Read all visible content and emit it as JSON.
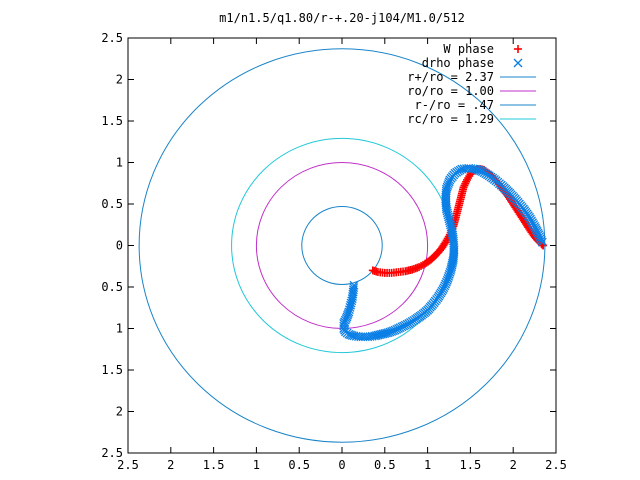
{
  "chart_data": {
    "type": "scatter",
    "title": "m1/n1.5/q1.80/r-+.20-j104/M1.0/512",
    "xlim": [
      -2.5,
      2.5
    ],
    "ylim": [
      -2.5,
      2.5
    ],
    "x_ticks": [
      -2.5,
      -2,
      -1.5,
      -1,
      -0.5,
      0,
      0.5,
      1,
      1.5,
      2,
      2.5
    ],
    "y_ticks": [
      -2.5,
      -2,
      -1.5,
      -1,
      -0.5,
      0,
      0.5,
      1,
      1.5,
      2,
      2.5
    ],
    "x_tick_labels": [
      "2.5",
      "2",
      "1.5",
      "1",
      "0.5",
      "0",
      "0.5",
      "1",
      "1.5",
      "2",
      "2.5"
    ],
    "y_tick_labels": [
      "2.5",
      "2",
      "1.5",
      "1",
      "0.5",
      "0",
      "0.5",
      "1",
      "1.5",
      "2",
      "2.5"
    ],
    "grid": false,
    "legend_position": "top-right",
    "series": [
      {
        "name": "W phase",
        "kind": "points",
        "marker": "+",
        "color": "#ff0000",
        "x": [
          0.36,
          0.42,
          0.5,
          0.58,
          0.66,
          0.74,
          0.82,
          0.9,
          0.97,
          1.04,
          1.1,
          1.16,
          1.21,
          1.26,
          1.3,
          1.33,
          1.36,
          1.39,
          1.42,
          1.46,
          1.5,
          1.54,
          1.58,
          1.62,
          1.66,
          1.7,
          1.75,
          1.8,
          1.85,
          1.9,
          1.95,
          2.0,
          2.05,
          2.1,
          2.15,
          2.2,
          2.24,
          2.28,
          2.31,
          2.33,
          2.34,
          2.35
        ],
        "y": [
          -0.3,
          -0.32,
          -0.33,
          -0.33,
          -0.32,
          -0.31,
          -0.29,
          -0.26,
          -0.22,
          -0.17,
          -0.11,
          -0.04,
          0.04,
          0.13,
          0.23,
          0.34,
          0.46,
          0.58,
          0.7,
          0.79,
          0.86,
          0.9,
          0.92,
          0.92,
          0.91,
          0.88,
          0.84,
          0.78,
          0.72,
          0.65,
          0.58,
          0.5,
          0.42,
          0.34,
          0.26,
          0.18,
          0.12,
          0.07,
          0.04,
          0.02,
          0.01,
          0.0
        ]
      },
      {
        "name": "drho phase",
        "kind": "points",
        "marker": "x",
        "color": "#0b7fe6",
        "x": [
          0.14,
          0.13,
          0.12,
          0.1,
          0.08,
          0.05,
          0.02,
          0.02,
          0.04,
          0.08,
          0.14,
          0.22,
          0.3,
          0.38,
          0.46,
          0.54,
          0.62,
          0.7,
          0.78,
          0.86,
          0.93,
          1.0,
          1.06,
          1.12,
          1.18,
          1.23,
          1.27,
          1.3,
          1.31,
          1.3,
          1.28,
          1.25,
          1.22,
          1.21,
          1.22,
          1.26,
          1.32,
          1.4,
          1.48,
          1.56,
          1.64,
          1.72,
          1.8,
          1.88,
          1.96,
          2.04,
          2.12,
          2.19,
          2.25,
          2.3,
          2.34
        ],
        "y": [
          -0.48,
          -0.56,
          -0.64,
          -0.72,
          -0.8,
          -0.88,
          -0.94,
          -1.0,
          -1.04,
          -1.07,
          -1.09,
          -1.1,
          -1.1,
          -1.09,
          -1.07,
          -1.05,
          -1.02,
          -0.98,
          -0.94,
          -0.89,
          -0.84,
          -0.78,
          -0.71,
          -0.63,
          -0.53,
          -0.42,
          -0.3,
          -0.17,
          -0.05,
          0.08,
          0.2,
          0.32,
          0.44,
          0.56,
          0.68,
          0.79,
          0.87,
          0.92,
          0.93,
          0.92,
          0.89,
          0.84,
          0.78,
          0.71,
          0.63,
          0.54,
          0.44,
          0.34,
          0.23,
          0.13,
          0.04
        ]
      },
      {
        "name": "r+/ro = 2.37",
        "kind": "circle",
        "radius": 2.37,
        "color": "#1a84c8"
      },
      {
        "name": "ro/ro = 1.00",
        "kind": "circle",
        "radius": 1.0,
        "color": "#c030c8"
      },
      {
        "name": "r-/ro =  .47",
        "kind": "circle",
        "radius": 0.47,
        "color": "#1a84c8"
      },
      {
        "name": "rc/ro = 1.29",
        "kind": "circle",
        "radius": 1.29,
        "color": "#22c8d8"
      }
    ]
  }
}
